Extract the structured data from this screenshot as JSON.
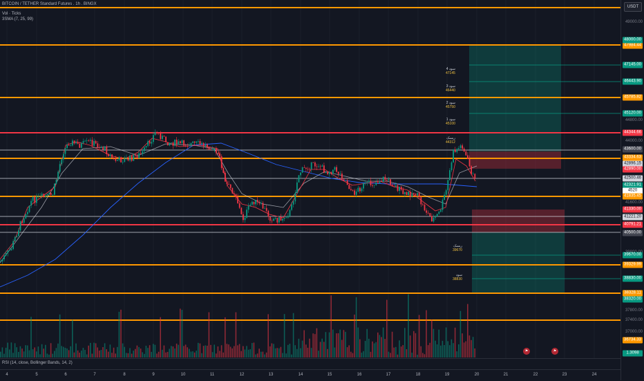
{
  "header": {
    "symbol_line": "BITCOIN / TETHER Standard Futures . 1h . BINGX",
    "volume_label": "Vol · Ticks",
    "sma_label": "3SMA (7, 25, 99)",
    "currency": "USDT"
  },
  "rsi": {
    "label": "RSI (14, close, Bollinger Bands, 14, 2)"
  },
  "price_ticks": [
    "49000.00",
    "44800.00",
    "44000.00",
    "41600.00",
    "39800.00",
    "37800.00",
    "37400.00",
    "37000.00"
  ],
  "price_tags": [
    {
      "label": "47984.44",
      "bg": "#ff9800"
    },
    {
      "label": "48000.00",
      "bg": "#089981"
    },
    {
      "label": "47145.00",
      "bg": "#089981"
    },
    {
      "label": "46443.90",
      "bg": "#089981"
    },
    {
      "label": "45785.82",
      "bg": "#ff9800"
    },
    {
      "label": "45120.00",
      "bg": "#089981"
    },
    {
      "label": "44344.66",
      "bg": "#f23645"
    },
    {
      "label": "43600.00",
      "bg": "#434651"
    },
    {
      "label": "43334.63",
      "bg": "#ff9800"
    },
    {
      "label": "42896.15",
      "bg": "#d1d4dc"
    },
    {
      "label": "42890.00",
      "bg": "#f23645"
    },
    {
      "label": "42500.46",
      "bg": "#d1d4dc"
    },
    {
      "label": "42321.91",
      "bg": "#089981"
    },
    {
      "label": "4520",
      "bg": "#ffffff"
    },
    {
      "label": "41835.45",
      "bg": "#ff9800"
    },
    {
      "label": "41330.00",
      "bg": "#f23645"
    },
    {
      "label": "41221.20",
      "bg": "#d1d4dc"
    },
    {
      "label": "40791.21",
      "bg": "#f23645"
    },
    {
      "label": "40500.00",
      "bg": "#434651"
    },
    {
      "label": "39670.00",
      "bg": "#089981"
    },
    {
      "label": "39329.99",
      "bg": "#ff9800"
    },
    {
      "label": "38830.00",
      "bg": "#089981"
    },
    {
      "label": "38328.11",
      "bg": "#ff9800"
    },
    {
      "label": "38320.00",
      "bg": "#089981"
    },
    {
      "label": "36734.33",
      "bg": "#ff9800"
    },
    {
      "label": "1.3098",
      "bg": "#089981"
    }
  ],
  "time_labels": [
    "4",
    "5",
    "6",
    "7",
    "8",
    "9",
    "10",
    "11",
    "12",
    "13",
    "14",
    "15",
    "16",
    "17",
    "18",
    "19",
    "20",
    "21",
    "22",
    "23",
    "24"
  ],
  "annotations": {
    "tp4": {
      "label": "سود 4",
      "value": "47145"
    },
    "tp3": {
      "label": "سود 3",
      "value": "46440"
    },
    "tp2": {
      "label": "سود 2",
      "value": "45750"
    },
    "tp1": {
      "label": "سود 1",
      "value": "45100"
    },
    "sl_long": {
      "label": "ریسک",
      "value": "44312"
    },
    "sl_short": {
      "label": "ریسک",
      "value": "39670"
    },
    "tp_short": {
      "label": "سود",
      "value": "38830"
    }
  },
  "colors": {
    "background": "#131722",
    "orange": "#ff9800",
    "red": "#f23645",
    "green": "#089981",
    "grid": "#1e222d"
  },
  "chart_data": {
    "type": "line",
    "title": "",
    "ylim": [
      36500,
      49500
    ],
    "x_labels": [
      "4",
      "5",
      "6",
      "7",
      "8",
      "9",
      "10",
      "11",
      "12",
      "13",
      "14",
      "15",
      "16",
      "17",
      "18",
      "19",
      "20"
    ],
    "horizontal_levels": [
      48963,
      47984.44,
      45785.82,
      44344.66,
      43334.63,
      41835.45,
      40791.21,
      39329.99,
      38328.11,
      36734.33
    ],
    "close_approx": [
      39500,
      41800,
      43800,
      43500,
      43300,
      44000,
      43700,
      42000,
      41300,
      41200,
      43000,
      42600,
      42300,
      42100,
      41100,
      42900,
      42320
    ]
  }
}
